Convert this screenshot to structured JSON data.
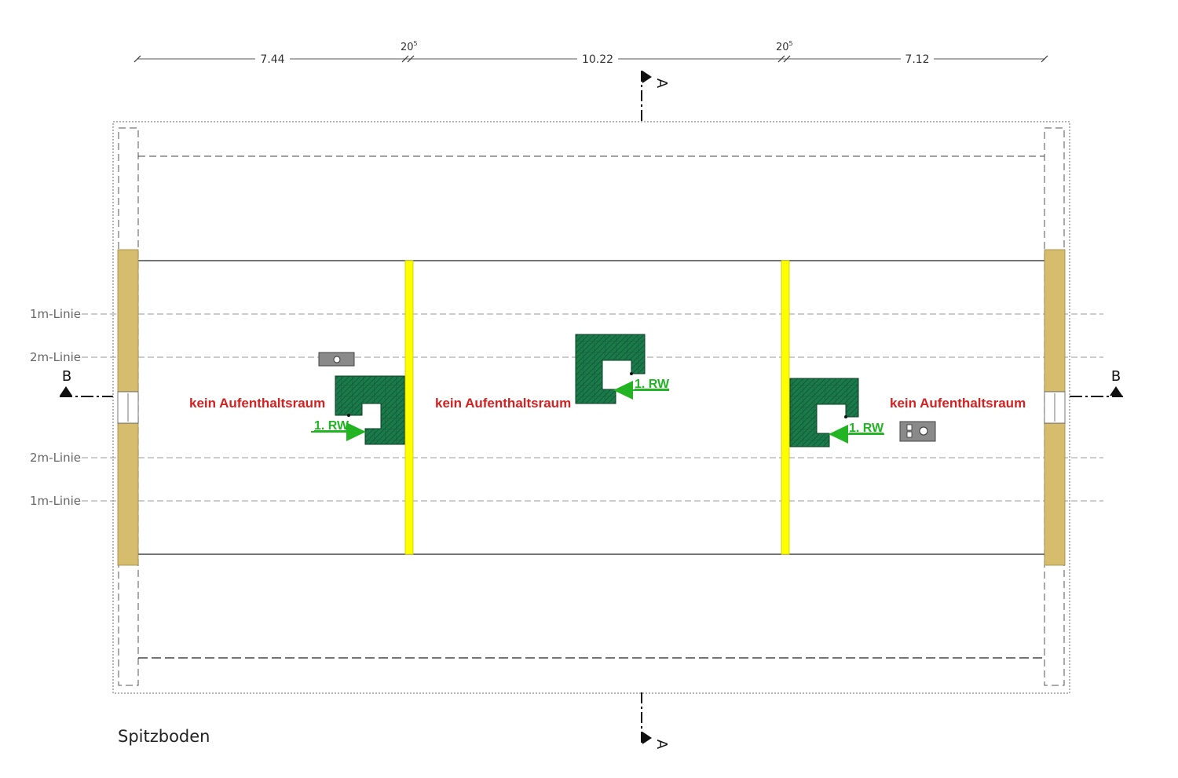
{
  "dimensions": {
    "seg1": "7.44",
    "wall1": "20",
    "wall1_sup": "5",
    "seg2": "10.22",
    "wall2": "20",
    "wall2_sup": "5",
    "seg3": "7.12"
  },
  "section_markers": {
    "a_top": "A",
    "a_bottom": "A",
    "b_left": "B",
    "b_right": "B"
  },
  "height_lines": {
    "top_1m": "1m-Linie",
    "top_2m": "2m-Linie",
    "bottom_2m": "2m-Linie",
    "bottom_1m": "1m-Linie"
  },
  "rooms": {
    "left": "kein Aufenthaltsraum",
    "middle": "kein Aufenthaltsraum",
    "right": "kein Aufenthaltsraum"
  },
  "stairs": {
    "left_label": "1. RW",
    "middle_label": "1. RW",
    "right_label": "1. RW"
  },
  "floor_label": "Spitzboden",
  "colors": {
    "timber": "#d6bd6d",
    "firewall": "#ffff00",
    "stair": "#1a7a4a",
    "arrow": "#22b422",
    "room_text": "#d42020",
    "chimney": "#8a8a8a"
  }
}
